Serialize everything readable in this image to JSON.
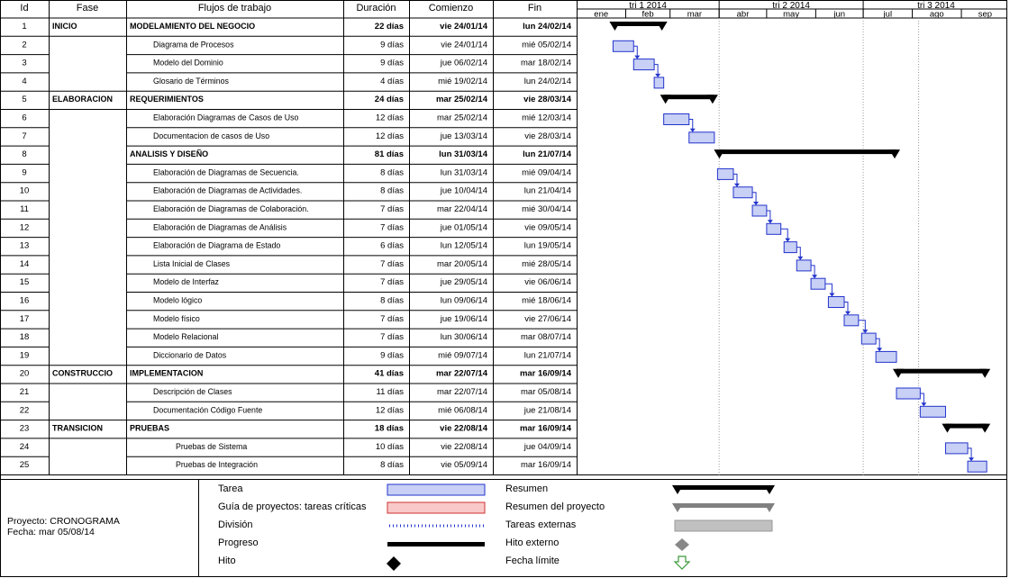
{
  "columns": {
    "id": "Id",
    "fase": "Fase",
    "flujo": "Flujos de trabajo",
    "duracion": "Duración",
    "comienzo": "Comienzo",
    "fin": "Fin"
  },
  "timeline": {
    "quarters": [
      "tri 1 2014",
      "tri 2 2014",
      "tri 3 2014"
    ],
    "months": [
      "ene",
      "feb",
      "mar",
      "abr",
      "may",
      "jun",
      "jul",
      "ago",
      "sep"
    ]
  },
  "rows": [
    {
      "id": "1",
      "fase": "INICIO",
      "task": "MODELAMIENTO DEL NEGOCIO",
      "dur": "22 días",
      "start": "vie 24/01/14",
      "end": "lun 24/02/14",
      "summary": true
    },
    {
      "id": "2",
      "fase": "",
      "task": "Diagrama de Procesos",
      "dur": "9 días",
      "start": "vie 24/01/14",
      "end": "mié 05/02/14",
      "summary": false
    },
    {
      "id": "3",
      "fase": "",
      "task": "Modelo del Dominio",
      "dur": "9 días",
      "start": "jue 06/02/14",
      "end": "mar 18/02/14",
      "summary": false
    },
    {
      "id": "4",
      "fase": "",
      "task": "Glosario de Términos",
      "dur": "4 días",
      "start": "mié 19/02/14",
      "end": "lun 24/02/14",
      "summary": false
    },
    {
      "id": "5",
      "fase": "ELABORACION",
      "task": "REQUERIMIENTOS",
      "dur": "24 días",
      "start": "mar 25/02/14",
      "end": "vie 28/03/14",
      "summary": true
    },
    {
      "id": "6",
      "fase": "",
      "task": "Elaboración Diagramas de Casos de Uso",
      "dur": "12 días",
      "start": "mar 25/02/14",
      "end": "mié 12/03/14",
      "summary": false
    },
    {
      "id": "7",
      "fase": "",
      "task": "Documentacion de casos de Uso",
      "dur": "12 días",
      "start": "jue 13/03/14",
      "end": "vie 28/03/14",
      "summary": false
    },
    {
      "id": "8",
      "fase": "",
      "task": "ANALISIS Y DISEÑO",
      "dur": "81 días",
      "start": "lun 31/03/14",
      "end": "lun 21/07/14",
      "summary": true
    },
    {
      "id": "9",
      "fase": "",
      "task": "Elaboración de Diagramas de Secuencia.",
      "dur": "8 días",
      "start": "lun 31/03/14",
      "end": "mié 09/04/14",
      "summary": false
    },
    {
      "id": "10",
      "fase": "",
      "task": "Elaboración de Diagramas de Actividades.",
      "dur": "8 días",
      "start": "jue 10/04/14",
      "end": "lun 21/04/14",
      "summary": false
    },
    {
      "id": "11",
      "fase": "",
      "task": "Elaboración de Diagramas de Colaboración.",
      "dur": "7 días",
      "start": "mar 22/04/14",
      "end": "mié 30/04/14",
      "summary": false
    },
    {
      "id": "12",
      "fase": "",
      "task": "Elaboración de Diagramas de Análisis",
      "dur": "7 días",
      "start": "jue 01/05/14",
      "end": "vie 09/05/14",
      "summary": false
    },
    {
      "id": "13",
      "fase": "",
      "task": "Elaboración de Diagrama de Estado",
      "dur": "6 días",
      "start": "lun 12/05/14",
      "end": "lun 19/05/14",
      "summary": false
    },
    {
      "id": "14",
      "fase": "",
      "task": "Lista Inicial de Clases",
      "dur": "7 días",
      "start": "mar 20/05/14",
      "end": "mié 28/05/14",
      "summary": false
    },
    {
      "id": "15",
      "fase": "",
      "task": "Modelo de Interfaz",
      "dur": "7 días",
      "start": "jue 29/05/14",
      "end": "vie 06/06/14",
      "summary": false
    },
    {
      "id": "16",
      "fase": "",
      "task": "Modelo lógico",
      "dur": "8 días",
      "start": "lun 09/06/14",
      "end": "mié 18/06/14",
      "summary": false
    },
    {
      "id": "17",
      "fase": "",
      "task": "Modelo físico",
      "dur": "7 días",
      "start": "jue 19/06/14",
      "end": "vie 27/06/14",
      "summary": false
    },
    {
      "id": "18",
      "fase": "",
      "task": "Modelo Relacional",
      "dur": "7 días",
      "start": "lun 30/06/14",
      "end": "mar 08/07/14",
      "summary": false
    },
    {
      "id": "19",
      "fase": "",
      "task": "Diccionario de Datos",
      "dur": "9 días",
      "start": "mié 09/07/14",
      "end": "lun 21/07/14",
      "summary": false
    },
    {
      "id": "20",
      "fase": "CONSTRUCCIO",
      "task": "IMPLEMENTACION",
      "dur": "41 días",
      "start": "mar 22/07/14",
      "end": "mar 16/09/14",
      "summary": true
    },
    {
      "id": "21",
      "fase": "",
      "task": "Descripción de Clases",
      "dur": "11 días",
      "start": "mar 22/07/14",
      "end": "mar 05/08/14",
      "summary": false
    },
    {
      "id": "22",
      "fase": "",
      "task": "Documentación Código Fuente",
      "dur": "12 días",
      "start": "mié 06/08/14",
      "end": "jue 21/08/14",
      "summary": false
    },
    {
      "id": "23",
      "fase": "TRANSICION",
      "task": "PRUEBAS",
      "dur": "18 días",
      "start": "vie 22/08/14",
      "end": "mar 16/09/14",
      "summary": true
    },
    {
      "id": "24",
      "fase": "",
      "task": "Pruebas de Sistema",
      "dur": "10 días",
      "start": "vie 22/08/14",
      "end": "jue 04/09/14",
      "summary": false
    },
    {
      "id": "25",
      "fase": "",
      "task": "Pruebas de Integración",
      "dur": "8 días",
      "start": "vie 05/09/14",
      "end": "mar 16/09/14",
      "summary": false
    }
  ],
  "legend": {
    "project": "Proyecto: CRONOGRAMA",
    "date": "Fecha: mar 05/08/14",
    "left_items": [
      "Tarea",
      "Guía de proyectos: tareas críticas",
      "División",
      "Progreso",
      "Hito"
    ],
    "right_items": [
      "Resumen",
      "Resumen del proyecto",
      "Tareas externas",
      "Hito externo",
      "Fecha límite"
    ]
  },
  "colors": {
    "task_fill": "#c8d0f5",
    "task_border": "#2233cc",
    "critical_fill": "#f9c9c9",
    "critical_border": "#d03030",
    "summary": "#000000",
    "project_summary": "#808080",
    "external": "#c0c0c0"
  }
}
